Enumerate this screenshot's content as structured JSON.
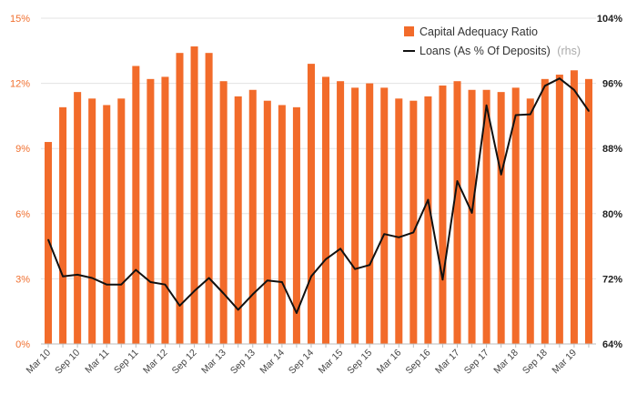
{
  "chart_data": {
    "type": "bar+line",
    "x": [
      "Mar 10",
      "Jun 10",
      "Sep 10",
      "Dec 10",
      "Mar 11",
      "Jun 11",
      "Sep 11",
      "Dec 11",
      "Mar 12",
      "Jun 12",
      "Sep 12",
      "Dec 12",
      "Mar 13",
      "Jun 13",
      "Sep 13",
      "Dec 13",
      "Mar 14",
      "Jun 14",
      "Sep 14",
      "Dec 14",
      "Mar 15",
      "Jun 15",
      "Sep 15",
      "Dec 15",
      "Mar 16",
      "Jun 16",
      "Sep 16",
      "Dec 16",
      "Mar 17",
      "Jun 17",
      "Sep 17",
      "Dec 17",
      "Mar 18",
      "Jun 18",
      "Sep 18",
      "Dec 18",
      "Mar 19",
      "Jun 19"
    ],
    "x_tick_labels": [
      "Mar 10",
      "Sep 10",
      "Mar 11",
      "Sep 11",
      "Mar 12",
      "Sep 12",
      "Mar 13",
      "Sep 13",
      "Mar 14",
      "Sep 14",
      "Mar 15",
      "Sep 15",
      "Mar 16",
      "Sep 16",
      "Mar 17",
      "Sep 17",
      "Mar 18",
      "Sep 18",
      "Mar 19"
    ],
    "series": [
      {
        "name": "Capital Adequacy Ratio",
        "type": "bar",
        "axis": "left",
        "color": "#f26b2a",
        "values": [
          9.3,
          10.9,
          11.6,
          11.3,
          11.0,
          11.3,
          12.8,
          12.2,
          12.3,
          13.4,
          13.7,
          13.4,
          12.1,
          11.4,
          11.7,
          11.2,
          11.0,
          10.9,
          12.9,
          12.3,
          12.1,
          11.8,
          12.0,
          11.8,
          11.3,
          11.2,
          11.4,
          11.9,
          12.1,
          11.7,
          11.7,
          11.6,
          11.8,
          11.3,
          12.2,
          12.4,
          12.6,
          12.2
        ]
      },
      {
        "name": "Loans (As % Of Deposits)",
        "name_note": "(rhs)",
        "type": "line",
        "axis": "right",
        "color": "#111111",
        "values": [
          76.8,
          72.3,
          72.5,
          72.1,
          71.3,
          71.3,
          73.1,
          71.6,
          71.3,
          68.7,
          70.5,
          72.1,
          70.2,
          68.2,
          70.1,
          71.8,
          71.6,
          67.8,
          72.3,
          74.4,
          75.7,
          73.2,
          73.7,
          77.5,
          77.1,
          77.7,
          81.7,
          71.9,
          84.0,
          80.1,
          93.3,
          84.8,
          92.1,
          92.2,
          95.7,
          96.6,
          95.2,
          92.6
        ]
      }
    ],
    "y_left": {
      "min": 0,
      "max": 15,
      "ticks": [
        0,
        3,
        6,
        9,
        12,
        15
      ],
      "unit": "%",
      "tick_labels": [
        "0%",
        "3%",
        "6%",
        "9%",
        "12%",
        "15%"
      ]
    },
    "y_right": {
      "min": 64,
      "max": 104,
      "ticks": [
        64,
        72,
        80,
        88,
        96,
        104
      ],
      "unit": "%",
      "tick_labels": [
        "64%",
        "72%",
        "80%",
        "88%",
        "96%",
        "104%"
      ]
    },
    "grid": "horizontal",
    "legend": {
      "placement": "top-right",
      "bar_label": "Capital Adequacy Ratio",
      "line_label": "Loans (As % Of Deposits)",
      "line_note": "(rhs)"
    },
    "colors": {
      "bar": "#f26b2a",
      "line": "#111111",
      "left_tick": "#f07030",
      "right_tick": "#222222",
      "grid": "#e3e3e3"
    }
  }
}
